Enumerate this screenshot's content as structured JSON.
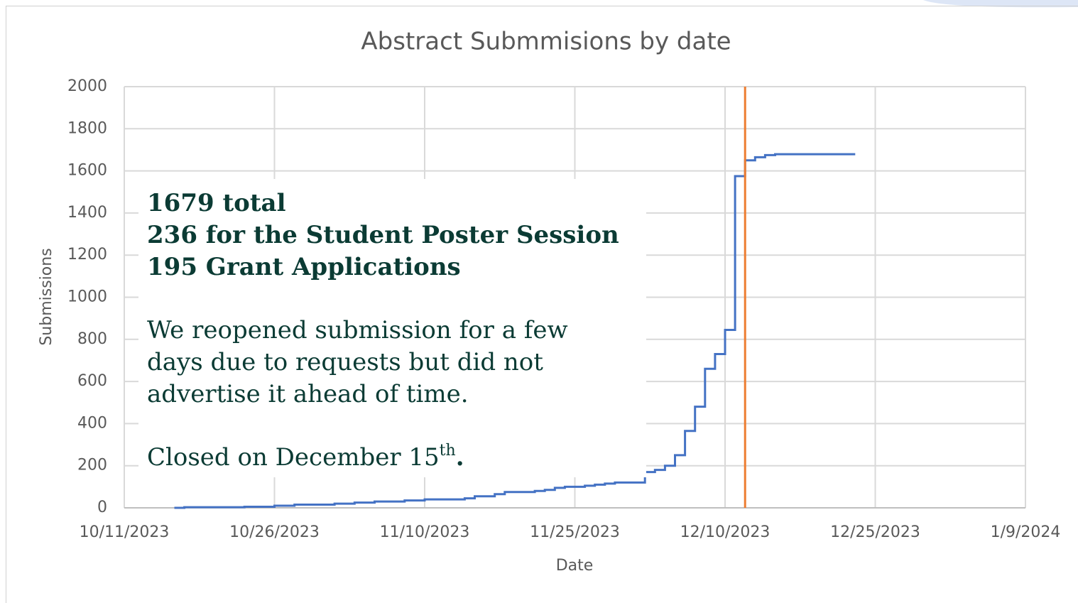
{
  "chart_data": {
    "type": "step",
    "title": "Abstract Submmisions by date",
    "xlabel": "Date",
    "ylabel": "Submissions",
    "xlim": [
      "10/11/2023",
      "1/9/2024"
    ],
    "xticks": [
      "10/11/2023",
      "10/26/2023",
      "11/10/2023",
      "11/25/2023",
      "12/10/2023",
      "12/25/2023",
      "1/9/2024"
    ],
    "ylim": [
      0,
      2000
    ],
    "yticks": [
      0,
      200,
      400,
      600,
      800,
      1000,
      1200,
      1400,
      1600,
      1800,
      2000
    ],
    "grid": true,
    "x": [
      "10/16/2023",
      "10/17/2023",
      "10/23/2023",
      "10/26/2023",
      "10/28/2023",
      "11/1/2023",
      "11/3/2023",
      "11/5/2023",
      "11/8/2023",
      "11/10/2023",
      "11/14/2023",
      "11/15/2023",
      "11/17/2023",
      "11/18/2023",
      "11/21/2023",
      "11/22/2023",
      "11/23/2023",
      "11/24/2023",
      "11/26/2023",
      "11/27/2023",
      "11/28/2023",
      "11/29/2023",
      "12/2/2023",
      "12/3/2023",
      "12/4/2023",
      "12/5/2023",
      "12/6/2023",
      "12/7/2023",
      "12/8/2023",
      "12/9/2023",
      "12/10/2023",
      "12/11/2023",
      "12/12/2023",
      "12/13/2023",
      "12/14/2023",
      "12/15/2023",
      "12/23/2023"
    ],
    "series": [
      {
        "name": "Submissions",
        "color": "#4472c4",
        "values": [
          0,
          3,
          5,
          10,
          15,
          20,
          25,
          30,
          35,
          40,
          45,
          55,
          65,
          75,
          80,
          85,
          95,
          100,
          105,
          110,
          115,
          120,
          170,
          180,
          200,
          250,
          365,
          480,
          660,
          730,
          845,
          1575,
          1650,
          1665,
          1675,
          1679,
          1679
        ]
      }
    ],
    "vline": {
      "x": "12/12/2023",
      "color": "#ed7d31"
    },
    "annotation": {
      "bold_lines": [
        "1679 total",
        "236 for the Student Poster Session",
        "195 Grant Applications"
      ],
      "lines": [
        "We reopened submission for a few",
        "days due to requests but did not",
        "advertise it ahead of time."
      ],
      "closing": {
        "text": "Closed on December 15",
        "sup": "th",
        "end": "."
      }
    }
  }
}
